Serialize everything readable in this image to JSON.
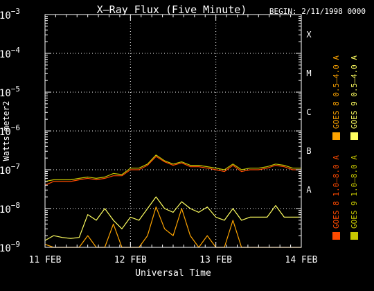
{
  "chart_data": {
    "type": "line",
    "title": "X–Ray Flux (Five Minute)",
    "begin_label": "BEGIN: 2/11/1998 0000",
    "xlabel": "Universal Time",
    "ylabel": "Watts meter2",
    "y_scale": "log",
    "ylim": [
      1e-09,
      0.001
    ],
    "y_ticks": [
      {
        "base": "10",
        "exp": "−9",
        "value": 1e-09
      },
      {
        "base": "10",
        "exp": "−8",
        "value": 1e-08
      },
      {
        "base": "10",
        "exp": "−7",
        "value": 1e-07
      },
      {
        "base": "10",
        "exp": "−6",
        "value": 1e-06
      },
      {
        "base": "10",
        "exp": "−5",
        "value": 1e-05
      },
      {
        "base": "10",
        "exp": "−4",
        "value": 0.0001
      },
      {
        "base": "10",
        "exp": "−3",
        "value": 0.001
      }
    ],
    "x_unit": "day",
    "xlim": [
      0,
      3
    ],
    "x_ticks": [
      {
        "label": "11 FEB",
        "day": 0
      },
      {
        "label": "12 FEB",
        "day": 1
      },
      {
        "label": "13 FEB",
        "day": 2
      },
      {
        "label": "14 FEB",
        "day": 3
      }
    ],
    "flare_classes": [
      {
        "label": "A",
        "value": 1e-08
      },
      {
        "label": "B",
        "value": 1e-07
      },
      {
        "label": "C",
        "value": 1e-06
      },
      {
        "label": "M",
        "value": 1e-05
      },
      {
        "label": "X",
        "value": 0.0001
      }
    ],
    "grid": true,
    "series": [
      {
        "name": "GOES 8 1.0–8.0 A",
        "color": "#ff4a00",
        "x": [
          0,
          0.1,
          0.2,
          0.3,
          0.4,
          0.5,
          0.6,
          0.7,
          0.8,
          0.9,
          1.0,
          1.1,
          1.2,
          1.3,
          1.4,
          1.5,
          1.6,
          1.7,
          1.8,
          1.9,
          2.0,
          2.1,
          2.2,
          2.3,
          2.4,
          2.5,
          2.6,
          2.7,
          2.8,
          2.9,
          3.0
        ],
        "y": [
          4e-08,
          5e-08,
          5e-08,
          5e-08,
          5.5e-08,
          6e-08,
          5.5e-08,
          6e-08,
          7e-08,
          7e-08,
          1e-07,
          1e-07,
          1.3e-07,
          2.2e-07,
          1.6e-07,
          1.3e-07,
          1.5e-07,
          1.2e-07,
          1.2e-07,
          1.1e-07,
          1e-07,
          9e-08,
          1.3e-07,
          9e-08,
          1e-07,
          1e-07,
          1.1e-07,
          1.3e-07,
          1.2e-07,
          1e-07,
          1e-07
        ]
      },
      {
        "name": "GOES 8 0.5–4.0 A",
        "color": "#ffa500",
        "x": [
          0,
          0.1,
          0.2,
          0.3,
          0.4,
          0.5,
          0.6,
          0.7,
          0.8,
          0.9,
          1.0,
          1.1,
          1.2,
          1.3,
          1.4,
          1.5,
          1.6,
          1.7,
          1.8,
          1.9,
          2.0,
          2.1,
          2.2,
          2.3,
          2.4,
          2.5,
          2.6,
          2.7,
          2.8,
          2.9,
          3.0
        ],
        "y": [
          1.2e-09,
          1e-09,
          1e-09,
          1e-09,
          1e-09,
          2e-09,
          1e-09,
          1e-09,
          4e-09,
          1e-09,
          1e-09,
          1e-09,
          2e-09,
          1.1e-08,
          3e-09,
          2e-09,
          1e-08,
          2e-09,
          1e-09,
          2e-09,
          1e-09,
          1e-09,
          5e-09,
          1e-09,
          1e-09,
          1e-09,
          1e-09,
          1e-09,
          1e-09,
          1e-09,
          1e-09
        ]
      },
      {
        "name": "GOES 9 0.5–4.0 A",
        "color": "#ffff60",
        "x": [
          0,
          0.1,
          0.2,
          0.3,
          0.4,
          0.5,
          0.6,
          0.7,
          0.8,
          0.9,
          1.0,
          1.1,
          1.2,
          1.3,
          1.4,
          1.5,
          1.6,
          1.7,
          1.8,
          1.9,
          2.0,
          2.1,
          2.2,
          2.3,
          2.4,
          2.5,
          2.6,
          2.7,
          2.8,
          2.9,
          3.0
        ],
        "y": [
          1.5e-09,
          2e-09,
          1.8e-09,
          1.7e-09,
          1.8e-09,
          7e-09,
          5e-09,
          1e-08,
          5e-09,
          3e-09,
          6e-09,
          5e-09,
          1e-08,
          2e-08,
          1e-08,
          8e-09,
          1.5e-08,
          1e-08,
          8e-09,
          1.1e-08,
          6e-09,
          5e-09,
          1e-08,
          5e-09,
          6e-09,
          6e-09,
          6e-09,
          1.2e-08,
          6e-09,
          6e-09,
          6e-09
        ]
      },
      {
        "name": "GOES 9 1.0–8.0 A",
        "color": "#c8c800",
        "x": [
          0,
          0.1,
          0.2,
          0.3,
          0.4,
          0.5,
          0.6,
          0.7,
          0.8,
          0.9,
          1.0,
          1.1,
          1.2,
          1.3,
          1.4,
          1.5,
          1.6,
          1.7,
          1.8,
          1.9,
          2.0,
          2.1,
          2.2,
          2.3,
          2.4,
          2.5,
          2.6,
          2.7,
          2.8,
          2.9,
          3.0
        ],
        "y": [
          5e-08,
          5.5e-08,
          5.5e-08,
          5.5e-08,
          6e-08,
          6.5e-08,
          6e-08,
          6.5e-08,
          8e-08,
          7.5e-08,
          1.1e-07,
          1.1e-07,
          1.4e-07,
          2.4e-07,
          1.7e-07,
          1.4e-07,
          1.6e-07,
          1.3e-07,
          1.3e-07,
          1.2e-07,
          1.1e-07,
          1e-07,
          1.4e-07,
          1e-07,
          1.1e-07,
          1.1e-07,
          1.2e-07,
          1.4e-07,
          1.3e-07,
          1.1e-07,
          1.1e-07
        ]
      }
    ]
  }
}
